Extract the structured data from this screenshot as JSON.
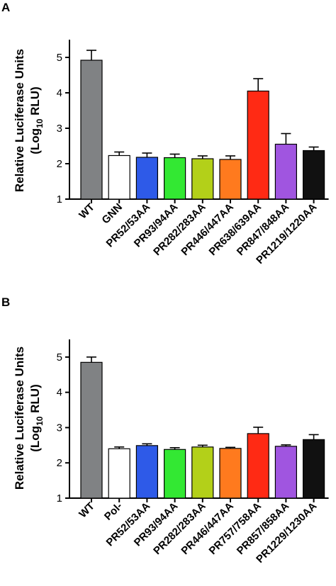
{
  "chart_data": [
    {
      "panel": "A",
      "type": "bar",
      "ylabel_line1": "Relative  Luciferase Units",
      "ylabel_line2_pre": "(Log",
      "ylabel_line2_sub": "10",
      "ylabel_line2_post": "  RLU)",
      "ylim": [
        1,
        5.5
      ],
      "yticks": [
        "1",
        "2",
        "3",
        "4",
        "5"
      ],
      "grid": false,
      "categories": [
        "WT",
        "GNN",
        "PR52/53AA",
        "PR93/94AA",
        "PR282/283AA",
        "PR446/447AA",
        "PR638/639AA",
        "PR847/848AA",
        "PR1219/1220AA"
      ],
      "values": [
        4.92,
        2.23,
        2.18,
        2.17,
        2.14,
        2.12,
        4.05,
        2.55,
        2.37
      ],
      "errors": [
        0.28,
        0.1,
        0.12,
        0.1,
        0.08,
        0.1,
        0.35,
        0.3,
        0.1
      ],
      "colors": [
        "#808284",
        "#ffffff",
        "#2e5ae8",
        "#33e833",
        "#b3d019",
        "#ff7a1e",
        "#ff2a14",
        "#a055e0",
        "#111111"
      ]
    },
    {
      "panel": "B",
      "type": "bar",
      "ylabel_line1": "Relative  Luciferase Units",
      "ylabel_line2_pre": "(Log",
      "ylabel_line2_sub": "10",
      "ylabel_line2_post": "  RLU)",
      "ylim": [
        1,
        5.5
      ],
      "yticks": [
        "1",
        "2",
        "3",
        "4",
        "5"
      ],
      "grid": false,
      "categories": [
        "WT",
        "Pol-",
        "PR52/53AA",
        "PR93/94AA",
        "PR282/283AA",
        "PR446/447AA",
        "PR757/758AA",
        "PR857/858AA",
        "PR1229/1230AA"
      ],
      "values": [
        4.85,
        2.4,
        2.49,
        2.38,
        2.45,
        2.41,
        2.83,
        2.47,
        2.66
      ],
      "errors": [
        0.15,
        0.05,
        0.05,
        0.05,
        0.05,
        0.03,
        0.18,
        0.04,
        0.14
      ],
      "colors": [
        "#808284",
        "#ffffff",
        "#2e5ae8",
        "#33e833",
        "#b3d019",
        "#ff7a1e",
        "#ff2a14",
        "#a055e0",
        "#111111"
      ]
    }
  ]
}
